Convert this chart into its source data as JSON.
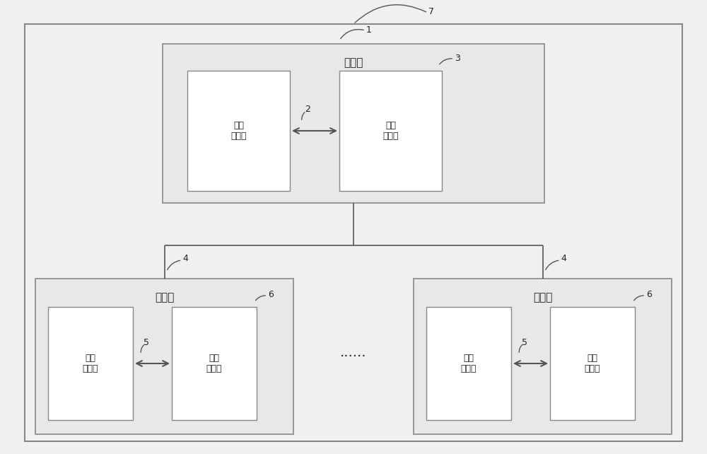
{
  "bg_color": "#f0f0f0",
  "box_color": "#ffffff",
  "box_edge_color": "#888888",
  "line_color": "#555555",
  "text_color": "#222222",
  "label_7": "7",
  "label_1": "1",
  "label_2": "2",
  "label_3": "3",
  "label_4_left": "4",
  "label_4_right": "4",
  "label_5_left": "5",
  "label_5_right": "5",
  "label_6_left": "6",
  "label_6_right": "6",
  "master_label": "主设备",
  "slave_label": "从设备",
  "mem1_label": "第一\n存储器",
  "proc1_label": "第一\n处理器",
  "mem2_label": "第二\n存储器",
  "proc2_label": "第二\n处理器",
  "ellipsis_label": "······",
  "figsize": [
    10.0,
    6.42
  ],
  "dpi": 100
}
